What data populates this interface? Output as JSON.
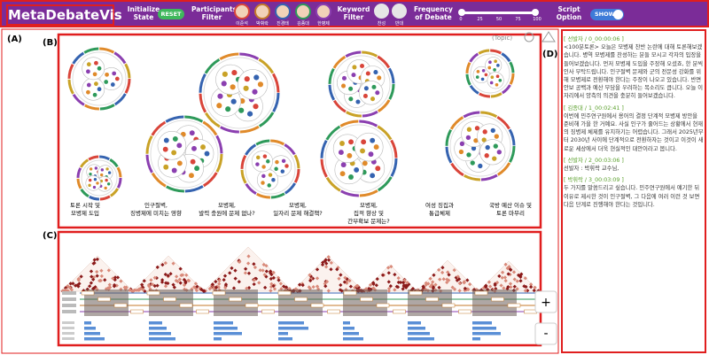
{
  "header": {
    "title": "MetaDebateVis",
    "initialize_label": "Initialize State",
    "reset": "RESET",
    "participants_label": "Participants Filter",
    "participants": [
      "이준석",
      "박휘락",
      "진경태",
      "김종대",
      "한병제"
    ],
    "keyword_label": "Keyword Filter",
    "keywords": [
      "찬성",
      "반대"
    ],
    "frequency_label": "Frequency of Debate",
    "frequency_ticks": [
      0,
      25,
      50,
      75,
      100
    ],
    "script_label": "Script Option",
    "script_toggle": "SHOW"
  },
  "panels": {
    "a": "(A)",
    "b": "(B)",
    "c": "(C)",
    "d": "(D)"
  },
  "topic_view": {
    "legend": "(Topic)",
    "topics": [
      "토론 시작 및 모병제 도입",
      "인구절벽, 징병제에 미치는 영향",
      "모병제, 발력 충원에 문제 없나?",
      "모병제, 일자리 문제 해결책?",
      "모병제, 집적 향상 및 간부확보 문제는?",
      "여성 징집과 통급체제",
      "국방 예산 이슈 및 토론 마무리"
    ]
  },
  "zoom": {
    "in": "+",
    "out": "-"
  },
  "script": [
    {
      "speaker": "[ 선발자 / 0_00:00:06 ]",
      "text": "<100분토론> 오늘은 모병제 찬반 논란에 대해 토론해보겠습니다. 병역 모병제를 찬성하는 분들 모시고 각자의 입장을 들어보겠습니다. 먼저 모병제 도입을 주장해 오셨죠, 한 분씩 인사 부탁드립니다. 인구절벽 문제와 군의 전문성 강화를 위해 모병제로 전환해야 한다는 주장이 나오고 있습니다. 반면 안보 공백과 예산 부담을 우려하는 목소리도 큽니다. 오늘 이 자리에서 양측의 의견을 충분히 들어보겠습니다."
    },
    {
      "speaker": "[ 김종대 / 1_00:02:41 ]",
      "text": "이번에 민주연구원에서 용어의 결정 단계적 모병제 방안을 준비해 가을 한 거예요. 사실 인구가 줄어드는 상황에서 현재의 징병제 체제를 유지하기는 어렵습니다. 그래서 2025년부터 2030년 사이에 단계적으로 전환하자는 것이고 이것이 새로운 세상에서 더욱 현실적인 대안이라고 봅니다."
    },
    {
      "speaker": "[ 선발자 / 2_00:03:06 ]",
      "text": "선발자 : 박휘락 교수님,"
    },
    {
      "speaker": "[ 박휘락 / 3_00:03:09 ]",
      "text": "두 가지를 말씀드리고 싶습니다. 민주연구원에서 얘기한 뒤 이유로 제시한 것이 인구절벽, 그 다음에 여러 이런 것 보면 다음 단계로 진행해야 한다는 것입니다."
    }
  ]
}
